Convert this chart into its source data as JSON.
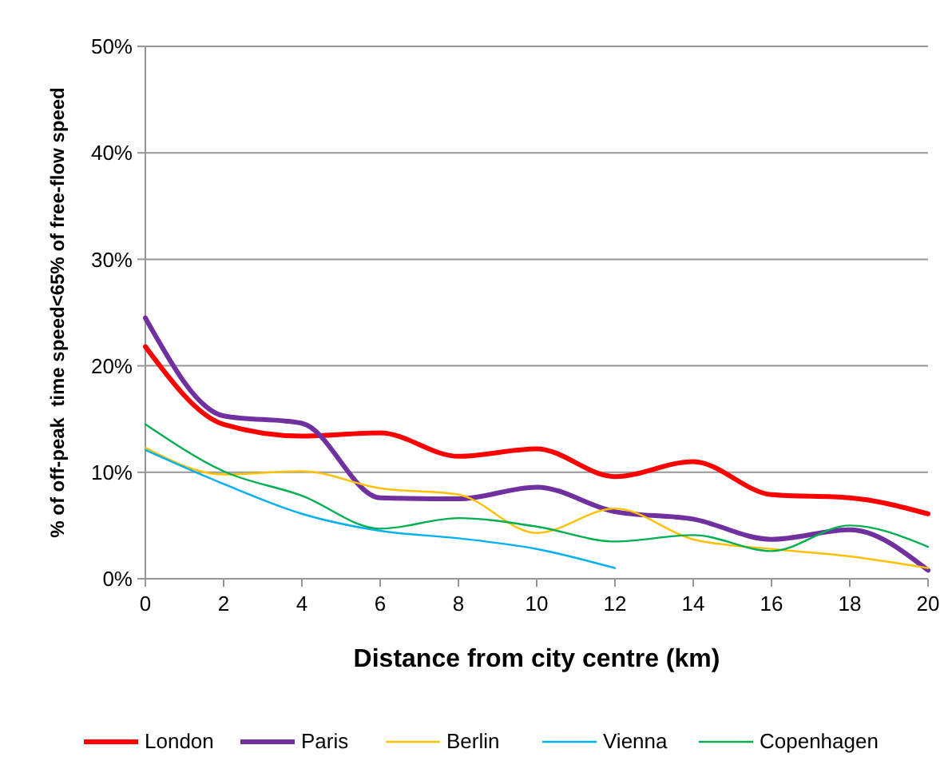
{
  "chart_data": {
    "type": "line",
    "xlabel": "Distance from city centre (km)",
    "ylabel": "% of off-peak  time speed<65% of free-flow speed",
    "x": [
      0,
      2,
      4,
      6,
      8,
      10,
      12,
      14,
      16,
      18,
      20
    ],
    "xlim": [
      0,
      20
    ],
    "xticks": [
      0,
      2,
      4,
      6,
      8,
      10,
      12,
      14,
      16,
      18,
      20
    ],
    "ylim": [
      0,
      50
    ],
    "yticks": [
      {
        "value": 0,
        "label": "0%"
      },
      {
        "value": 10,
        "label": "10%"
      },
      {
        "value": 20,
        "label": "20%"
      },
      {
        "value": 30,
        "label": "30%"
      },
      {
        "value": 40,
        "label": "40%"
      },
      {
        "value": 50,
        "label": "50%"
      }
    ],
    "grid": "y",
    "legend": "bottom",
    "line_style": "solid",
    "series": [
      {
        "name": "London",
        "color": "#ff0000",
        "values": [
          21.8,
          14.5,
          13.4,
          13.7,
          11.5,
          12.2,
          9.6,
          11,
          7.9,
          7.6,
          6.1
        ]
      },
      {
        "name": "Paris",
        "color": "#7030a0",
        "values": [
          24.5,
          15.3,
          14.6,
          7.6,
          7.5,
          8.6,
          6.3,
          5.6,
          3.7,
          4.6,
          0.8
        ]
      },
      {
        "name": "Berlin",
        "color": "#ffc000",
        "values": [
          12.3,
          9.8,
          10.1,
          8.5,
          7.9,
          4.3,
          6.6,
          3.7,
          2.8,
          2.1,
          1
        ]
      },
      {
        "name": "Vienna",
        "color": "#00b0f0",
        "values": [
          12.1,
          8.9,
          6.1,
          4.5,
          3.8,
          2.8,
          1,
          null,
          null,
          null,
          null
        ]
      },
      {
        "name": "Copenhagen",
        "color": "#00b050",
        "values": [
          14.5,
          10.1,
          7.8,
          4.7,
          5.7,
          4.9,
          3.5,
          4.1,
          2.6,
          5,
          3
        ]
      }
    ]
  }
}
